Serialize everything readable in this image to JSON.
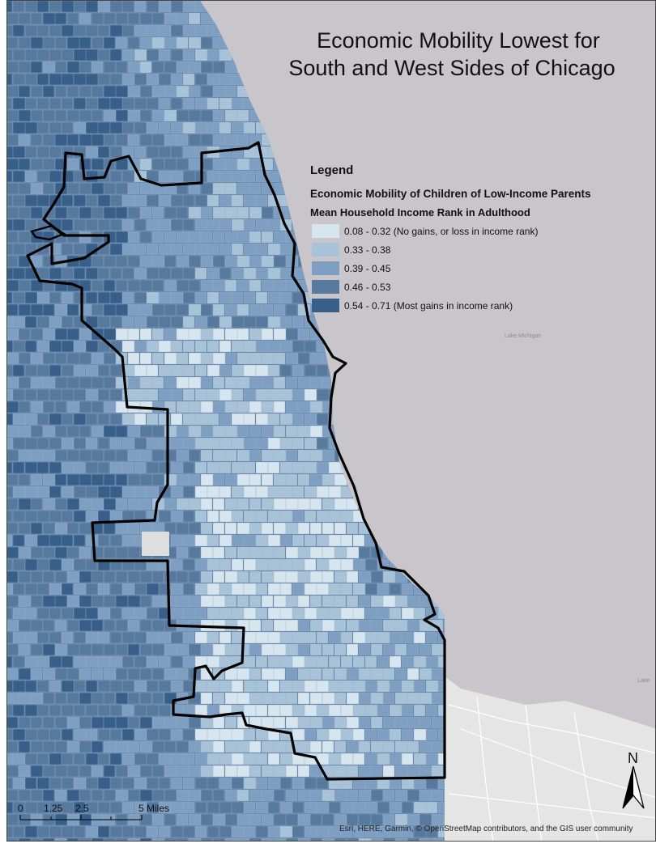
{
  "map": {
    "title_line1": "Economic Mobility Lowest for",
    "title_line2": "South and West Sides of Chicago",
    "water_labels": [
      "Lake Michigan",
      "Lake"
    ],
    "credit": "Esri, HERE, Garmin, © OpenStreetMap contributors, and the GIS user community"
  },
  "legend": {
    "heading": "Legend",
    "subtitle": "Economic Mobility of Children of Low-Income Parents",
    "field": "Mean Household Income Rank in Adulthood",
    "classes": [
      {
        "label": "0.08 - 0.32 (No gains, or loss in income rank)",
        "color": "#d6e5ee"
      },
      {
        "label": "0.33 - 0.38",
        "color": "#a8c2d8"
      },
      {
        "label": "0.39 - 0.45",
        "color": "#7f9fc2"
      },
      {
        "label": "0.46 - 0.53",
        "color": "#58799e"
      },
      {
        "label": "0.54 - 0.71 (Most gains in income rank)",
        "color": "#375f89"
      }
    ]
  },
  "scale_bar": {
    "ticks": [
      "0",
      "1.25",
      "2.5",
      "",
      "5"
    ],
    "unit": "Miles"
  },
  "north_arrow": {
    "label": "N"
  },
  "colors": {
    "water": "#c8c6cb",
    "boundary": "#000000",
    "no_data": "#dedede",
    "road": "#ffffff"
  }
}
